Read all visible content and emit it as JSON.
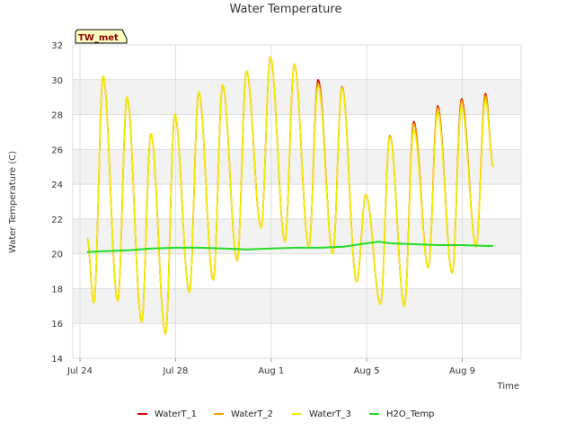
{
  "chart_data": {
    "type": "line",
    "title": "Water Temperature",
    "xlabel": "Time",
    "ylabel": "Water Temperature (C)",
    "badge": "TW_met",
    "ylim": [
      14,
      32
    ],
    "yticks": [
      14,
      16,
      18,
      20,
      22,
      24,
      26,
      28,
      30,
      32
    ],
    "xlim_days": [
      0,
      18
    ],
    "xticks": [
      {
        "day": 0,
        "label": "Jul 24"
      },
      {
        "day": 4,
        "label": "Jul 28"
      },
      {
        "day": 8,
        "label": "Aug 1"
      },
      {
        "day": 12,
        "label": "Aug 5"
      },
      {
        "day": 16,
        "label": "Aug 9"
      }
    ],
    "grid": true,
    "legend_position": "bottom",
    "diurnal_extrema": [
      [
        0.3,
        20.9
      ],
      [
        0.58,
        17.2
      ],
      [
        0.97,
        30.2
      ],
      [
        1.58,
        17.3
      ],
      [
        1.97,
        29.0
      ],
      [
        2.58,
        16.1
      ],
      [
        2.97,
        26.9
      ],
      [
        3.58,
        15.4
      ],
      [
        3.97,
        28.0
      ],
      [
        4.58,
        17.8
      ],
      [
        4.97,
        29.3
      ],
      [
        5.58,
        18.5
      ],
      [
        5.97,
        29.7
      ],
      [
        6.58,
        19.6
      ],
      [
        6.97,
        30.5
      ],
      [
        7.58,
        21.5
      ],
      [
        7.97,
        31.3
      ],
      [
        8.58,
        20.7
      ],
      [
        8.97,
        30.9
      ],
      [
        9.58,
        20.4
      ],
      [
        9.97,
        29.8
      ],
      [
        10.58,
        20.0
      ],
      [
        10.97,
        29.6
      ],
      [
        11.58,
        18.4
      ],
      [
        11.97,
        23.4
      ],
      [
        12.58,
        17.1
      ],
      [
        12.97,
        26.8
      ],
      [
        13.58,
        17.0
      ],
      [
        13.97,
        27.5
      ],
      [
        14.58,
        19.2
      ],
      [
        14.97,
        28.4
      ],
      [
        15.58,
        18.9
      ],
      [
        15.97,
        28.8
      ],
      [
        16.58,
        20.4
      ],
      [
        16.97,
        29.1
      ],
      [
        17.3,
        25.0
      ]
    ],
    "series": [
      {
        "name": "WaterT_1",
        "color": "#dd0000",
        "offsets": [
          [
            0.3,
            0
          ],
          [
            0.58,
            0
          ],
          [
            0.97,
            0
          ],
          [
            1.58,
            0
          ],
          [
            1.97,
            0
          ],
          [
            2.58,
            0
          ],
          [
            2.97,
            0
          ],
          [
            3.58,
            0
          ],
          [
            3.97,
            0
          ],
          [
            4.58,
            0
          ],
          [
            4.97,
            0
          ],
          [
            5.58,
            0
          ],
          [
            5.97,
            0
          ],
          [
            6.58,
            0
          ],
          [
            6.97,
            0
          ],
          [
            7.58,
            0
          ],
          [
            7.97,
            0
          ],
          [
            8.58,
            0
          ],
          [
            8.97,
            0
          ],
          [
            9.58,
            0
          ],
          [
            9.97,
            0.2
          ],
          [
            10.58,
            0
          ],
          [
            10.97,
            0
          ],
          [
            11.58,
            0
          ],
          [
            11.97,
            0
          ],
          [
            12.58,
            0
          ],
          [
            12.97,
            0
          ],
          [
            13.58,
            0
          ],
          [
            13.97,
            0.1
          ],
          [
            14.58,
            0
          ],
          [
            14.97,
            0.1
          ],
          [
            15.58,
            0
          ],
          [
            15.97,
            0.1
          ],
          [
            16.58,
            0
          ],
          [
            16.97,
            0.1
          ],
          [
            17.3,
            0
          ]
        ]
      },
      {
        "name": "WaterT_2",
        "color": "#f0a000",
        "offsets": [
          [
            0.3,
            0
          ],
          [
            0.58,
            0
          ],
          [
            0.97,
            0
          ],
          [
            1.58,
            0
          ],
          [
            1.97,
            0
          ],
          [
            2.58,
            0
          ],
          [
            2.97,
            0
          ],
          [
            3.58,
            0
          ],
          [
            3.97,
            0
          ],
          [
            4.58,
            0
          ],
          [
            4.97,
            0
          ],
          [
            5.58,
            0
          ],
          [
            5.97,
            0
          ],
          [
            6.58,
            0
          ],
          [
            6.97,
            0
          ],
          [
            7.58,
            0
          ],
          [
            7.97,
            0
          ],
          [
            8.58,
            0
          ],
          [
            8.97,
            0
          ],
          [
            9.58,
            0
          ],
          [
            9.97,
            0
          ],
          [
            10.58,
            0
          ],
          [
            10.97,
            0
          ],
          [
            11.58,
            0
          ],
          [
            11.97,
            0
          ],
          [
            12.58,
            0
          ],
          [
            12.97,
            0
          ],
          [
            13.58,
            0
          ],
          [
            13.97,
            0
          ],
          [
            14.58,
            0
          ],
          [
            14.97,
            0
          ],
          [
            15.58,
            0
          ],
          [
            15.97,
            0
          ],
          [
            16.58,
            0
          ],
          [
            16.97,
            0
          ],
          [
            17.3,
            0
          ]
        ]
      },
      {
        "name": "WaterT_3",
        "color": "#f5f000",
        "offsets": [
          [
            0.3,
            0
          ],
          [
            0.58,
            0
          ],
          [
            0.97,
            0
          ],
          [
            1.58,
            0
          ],
          [
            1.97,
            0
          ],
          [
            2.58,
            0
          ],
          [
            2.97,
            0
          ],
          [
            3.58,
            0
          ],
          [
            3.97,
            0
          ],
          [
            4.58,
            0
          ],
          [
            4.97,
            0
          ],
          [
            5.58,
            0
          ],
          [
            5.97,
            0
          ],
          [
            6.58,
            0
          ],
          [
            6.97,
            0
          ],
          [
            7.58,
            0
          ],
          [
            7.97,
            0
          ],
          [
            8.58,
            0
          ],
          [
            8.97,
            0
          ],
          [
            9.58,
            0
          ],
          [
            9.97,
            -0.2
          ],
          [
            10.58,
            0
          ],
          [
            10.97,
            -0.1
          ],
          [
            11.58,
            0
          ],
          [
            11.97,
            0
          ],
          [
            12.58,
            0
          ],
          [
            12.97,
            -0.1
          ],
          [
            13.58,
            0
          ],
          [
            13.97,
            -0.4
          ],
          [
            14.58,
            0
          ],
          [
            14.97,
            -0.3
          ],
          [
            15.58,
            0
          ],
          [
            15.97,
            -0.4
          ],
          [
            16.58,
            0
          ],
          [
            16.97,
            -0.3
          ],
          [
            17.3,
            0
          ]
        ]
      },
      {
        "name": "H2O_Temp",
        "color": "#22dd22",
        "points": [
          [
            0.3,
            20.1
          ],
          [
            1.0,
            20.15
          ],
          [
            2.0,
            20.2
          ],
          [
            3.0,
            20.3
          ],
          [
            4.0,
            20.35
          ],
          [
            5.0,
            20.35
          ],
          [
            6.0,
            20.3
          ],
          [
            7.0,
            20.25
          ],
          [
            8.0,
            20.3
          ],
          [
            9.0,
            20.35
          ],
          [
            10.0,
            20.35
          ],
          [
            11.0,
            20.4
          ],
          [
            12.0,
            20.6
          ],
          [
            12.5,
            20.7
          ],
          [
            13.0,
            20.6
          ],
          [
            14.0,
            20.55
          ],
          [
            15.0,
            20.5
          ],
          [
            16.0,
            20.5
          ],
          [
            17.0,
            20.45
          ],
          [
            17.3,
            20.45
          ]
        ]
      }
    ]
  }
}
